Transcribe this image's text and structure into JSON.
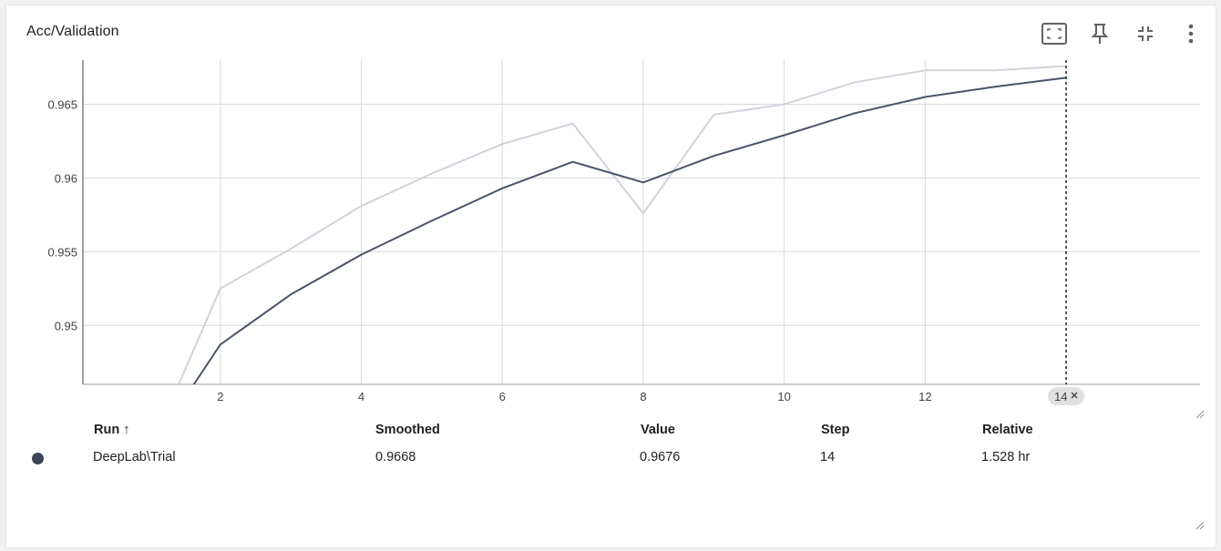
{
  "card": {
    "title": "Acc/Validation"
  },
  "toolbar": {
    "icons": [
      "fit-domain-icon",
      "pin-icon",
      "collapse-icon",
      "more-vert-icon"
    ]
  },
  "colors": {
    "smoothed_line": "#4a5468",
    "raw_line": "#cfd3da",
    "grid": "#d9d9d9",
    "axis": "#9e9e9e",
    "chip_bg": "#e0e0e0",
    "run_dot": "#3d4558"
  },
  "chart_data": {
    "type": "line",
    "x_ticks": [
      2,
      4,
      6,
      8,
      10,
      12
    ],
    "y_ticks": [
      0.95,
      0.955,
      0.96,
      0.965
    ],
    "y_tick_labels": [
      "0.95",
      "0.955",
      "0.96",
      "0.965"
    ],
    "xlim": [
      0.05,
      15.9
    ],
    "ylim": [
      0.946,
      0.968
    ],
    "grid": true,
    "series": [
      {
        "role": "raw",
        "x": [
          1,
          2,
          3,
          4,
          5,
          6,
          7,
          8,
          9,
          10,
          11,
          12,
          13,
          14
        ],
        "values": [
          0.9415,
          0.9525,
          0.9552,
          0.9581,
          0.9603,
          0.9623,
          0.9637,
          0.9576,
          0.9643,
          0.965,
          0.9665,
          0.9673,
          0.9673,
          0.9676
        ]
      },
      {
        "role": "smoothed",
        "x": [
          1,
          2,
          3,
          4,
          5,
          6,
          7,
          8,
          9,
          10,
          11,
          12,
          13,
          14
        ],
        "values": [
          0.9415,
          0.9487,
          0.9521,
          0.9548,
          0.9571,
          0.9593,
          0.9611,
          0.9597,
          0.9615,
          0.9629,
          0.9644,
          0.9655,
          0.9662,
          0.9668
        ]
      }
    ],
    "hover_step": 14,
    "hover_chip_label": "14"
  },
  "table": {
    "headers": {
      "run": "Run",
      "run_sort_arrow": "↑",
      "smoothed": "Smoothed",
      "value": "Value",
      "step": "Step",
      "relative": "Relative"
    },
    "rows": [
      {
        "run": "DeepLab\\Trial",
        "smoothed": "0.9668",
        "value": "0.9676",
        "step": "14",
        "relative": "1.528 hr"
      }
    ]
  }
}
